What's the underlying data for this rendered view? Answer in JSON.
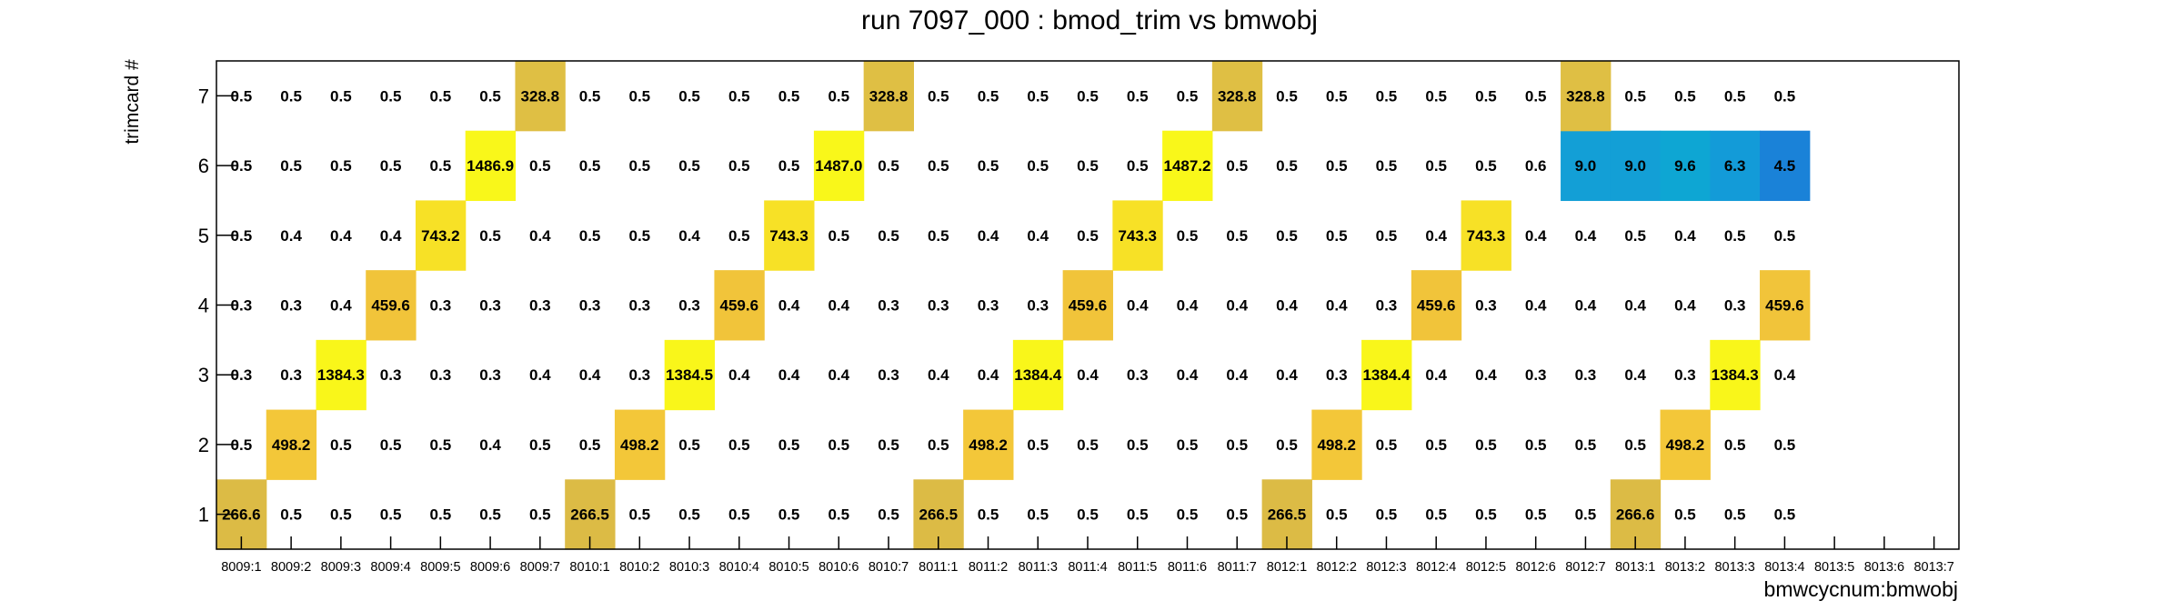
{
  "chart_data": {
    "type": "heatmap",
    "title": "run 7097_000 : bmod_trim vs bmwobj",
    "xlabel": "bmwcycnum:bmwobj",
    "ylabel": "trimcard #",
    "x_categories": [
      "8009:1",
      "8009:2",
      "8009:3",
      "8009:4",
      "8009:5",
      "8009:6",
      "8009:7",
      "8010:1",
      "8010:2",
      "8010:3",
      "8010:4",
      "8010:5",
      "8010:6",
      "8010:7",
      "8011:1",
      "8011:2",
      "8011:3",
      "8011:4",
      "8011:5",
      "8011:6",
      "8011:7",
      "8012:1",
      "8012:2",
      "8012:3",
      "8012:4",
      "8012:5",
      "8012:6",
      "8012:7",
      "8013:1",
      "8013:2",
      "8013:3",
      "8013:4",
      "8013:5",
      "8013:6",
      "8013:7"
    ],
    "y_categories": [
      "1",
      "2",
      "3",
      "4",
      "5",
      "6",
      "7"
    ],
    "rows": [
      [
        "266.6",
        "0.5",
        "0.5",
        "0.5",
        "0.5",
        "0.5",
        "0.5",
        "266.5",
        "0.5",
        "0.5",
        "0.5",
        "0.5",
        "0.5",
        "0.5",
        "266.5",
        "0.5",
        "0.5",
        "0.5",
        "0.5",
        "0.5",
        "0.5",
        "266.5",
        "0.5",
        "0.5",
        "0.5",
        "0.5",
        "0.5",
        "0.5",
        "266.6",
        "0.5",
        "0.5",
        "0.5",
        null,
        null,
        null
      ],
      [
        "0.5",
        "498.2",
        "0.5",
        "0.5",
        "0.5",
        "0.4",
        "0.5",
        "0.5",
        "498.2",
        "0.5",
        "0.5",
        "0.5",
        "0.5",
        "0.5",
        "0.5",
        "498.2",
        "0.5",
        "0.5",
        "0.5",
        "0.5",
        "0.5",
        "0.5",
        "498.2",
        "0.5",
        "0.5",
        "0.5",
        "0.5",
        "0.5",
        "0.5",
        "498.2",
        "0.5",
        "0.5",
        null,
        null,
        null
      ],
      [
        "0.3",
        "0.3",
        "1384.3",
        "0.3",
        "0.3",
        "0.3",
        "0.4",
        "0.4",
        "0.3",
        "1384.5",
        "0.4",
        "0.4",
        "0.4",
        "0.3",
        "0.4",
        "0.4",
        "1384.4",
        "0.4",
        "0.3",
        "0.4",
        "0.4",
        "0.4",
        "0.3",
        "1384.4",
        "0.4",
        "0.4",
        "0.3",
        "0.3",
        "0.4",
        "0.3",
        "1384.3",
        "0.4",
        null,
        null,
        null
      ],
      [
        "0.3",
        "0.3",
        "0.4",
        "459.6",
        "0.3",
        "0.3",
        "0.3",
        "0.3",
        "0.3",
        "0.3",
        "459.6",
        "0.4",
        "0.4",
        "0.3",
        "0.3",
        "0.3",
        "0.3",
        "459.6",
        "0.4",
        "0.4",
        "0.4",
        "0.4",
        "0.4",
        "0.3",
        "459.6",
        "0.3",
        "0.4",
        "0.4",
        "0.4",
        "0.4",
        "0.3",
        "459.6",
        null,
        null,
        null
      ],
      [
        "0.5",
        "0.4",
        "0.4",
        "0.4",
        "743.2",
        "0.5",
        "0.4",
        "0.5",
        "0.5",
        "0.4",
        "0.5",
        "743.3",
        "0.5",
        "0.5",
        "0.5",
        "0.4",
        "0.4",
        "0.5",
        "743.3",
        "0.5",
        "0.5",
        "0.5",
        "0.5",
        "0.5",
        "0.4",
        "743.3",
        "0.4",
        "0.4",
        "0.5",
        "0.4",
        "0.5",
        "0.5",
        null,
        null,
        null
      ],
      [
        "0.5",
        "0.5",
        "0.5",
        "0.5",
        "0.5",
        "1486.9",
        "0.5",
        "0.5",
        "0.5",
        "0.5",
        "0.5",
        "0.5",
        "1487.0",
        "0.5",
        "0.5",
        "0.5",
        "0.5",
        "0.5",
        "0.5",
        "1487.2",
        "0.5",
        "0.5",
        "0.5",
        "0.5",
        "0.5",
        "0.5",
        "0.6",
        "9.0",
        "9.0",
        "9.6",
        "6.3",
        "4.5",
        null,
        null,
        null
      ],
      [
        "0.5",
        "0.5",
        "0.5",
        "0.5",
        "0.5",
        "0.5",
        "328.8",
        "0.5",
        "0.5",
        "0.5",
        "0.5",
        "0.5",
        "0.5",
        "328.8",
        "0.5",
        "0.5",
        "0.5",
        "0.5",
        "0.5",
        "0.5",
        "328.8",
        "0.5",
        "0.5",
        "0.5",
        "0.5",
        "0.5",
        "0.5",
        "328.8",
        "0.5",
        "0.5",
        "0.5",
        "0.5",
        null,
        null,
        null
      ]
    ],
    "colors": {
      "266": "#dcbb45",
      "328": "#dfbf44",
      "459": "#f1c43a",
      "498": "#f3c739",
      "743": "#f7e126",
      "1384": "#f9f61a",
      "1486": "#f9f71a",
      "1487": "#f9f71a",
      "9.0": "#139fd6",
      "9.6": "#0ea6d3",
      "6.3": "#139bd8",
      "4.5": "#1a82d8"
    }
  }
}
